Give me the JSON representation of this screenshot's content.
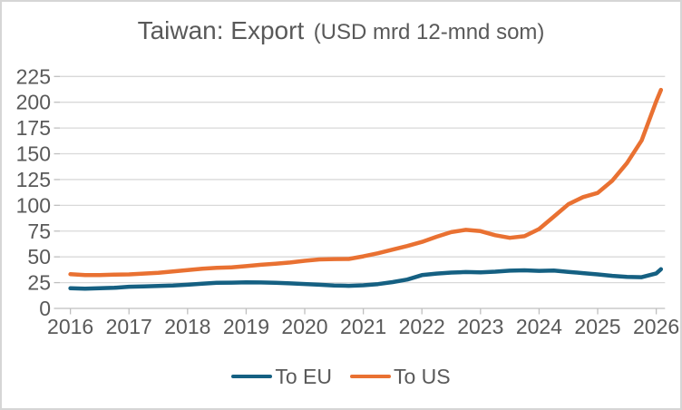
{
  "colors": {
    "eu_line": "#156082",
    "us_line": "#E97132",
    "text": "#595959",
    "gridline": "#D9D9D9",
    "axis": "#BFBFBF",
    "frame_border": "#D6D6D6",
    "background": "#FFFFFF"
  },
  "chart_data": {
    "type": "line",
    "title": "Taiwan: Export",
    "subtitle": "(USD mrd 12-mnd som)",
    "xlabel": "",
    "ylabel": "",
    "grid": "horizontal",
    "legend_position": "bottom",
    "xlim": [
      2015.82,
      2026.15
    ],
    "ylim": [
      0,
      225
    ],
    "x_ticks": [
      2016,
      2017,
      2018,
      2019,
      2020,
      2021,
      2022,
      2023,
      2024,
      2025,
      2026
    ],
    "y_ticks": [
      0,
      25,
      50,
      75,
      100,
      125,
      150,
      175,
      200,
      225
    ],
    "x": [
      2016,
      2016.25,
      2016.5,
      2016.75,
      2017,
      2017.25,
      2017.5,
      2017.75,
      2018,
      2018.25,
      2018.5,
      2018.75,
      2019,
      2019.25,
      2019.5,
      2019.75,
      2020,
      2020.25,
      2020.5,
      2020.75,
      2021,
      2021.25,
      2021.5,
      2021.75,
      2022,
      2022.25,
      2022.5,
      2022.75,
      2023,
      2023.25,
      2023.5,
      2023.75,
      2024,
      2024.25,
      2024.5,
      2024.75,
      2025,
      2025.25,
      2025.5,
      2025.75,
      2026,
      2026.08
    ],
    "series": [
      {
        "name": "To EU",
        "color": "#156082",
        "values": [
          19.5,
          19.2,
          19.5,
          20.0,
          21.0,
          21.3,
          21.7,
          22.2,
          23.0,
          24.0,
          24.8,
          25.0,
          25.3,
          25.2,
          24.8,
          24.3,
          23.7,
          23.0,
          22.2,
          21.9,
          22.4,
          23.6,
          25.5,
          28.0,
          32.3,
          33.8,
          34.8,
          35.3,
          35.0,
          35.6,
          36.6,
          37.0,
          36.4,
          36.8,
          35.5,
          34.2,
          33.0,
          31.6,
          30.6,
          30.3,
          34.0,
          38.0
        ]
      },
      {
        "name": "To US",
        "color": "#E97132",
        "values": [
          33.2,
          32.4,
          32.4,
          32.7,
          33.0,
          33.8,
          34.5,
          35.8,
          37.2,
          38.5,
          39.4,
          39.8,
          41.0,
          42.3,
          43.3,
          44.5,
          46.2,
          47.5,
          47.9,
          48.0,
          50.5,
          53.5,
          57.0,
          60.5,
          64.5,
          69.5,
          74.0,
          76.2,
          75.0,
          71.0,
          68.5,
          70.0,
          77.0,
          89.0,
          101.0,
          108.0,
          112.0,
          124.0,
          141.0,
          163.0,
          201.0,
          212.0
        ]
      }
    ]
  }
}
